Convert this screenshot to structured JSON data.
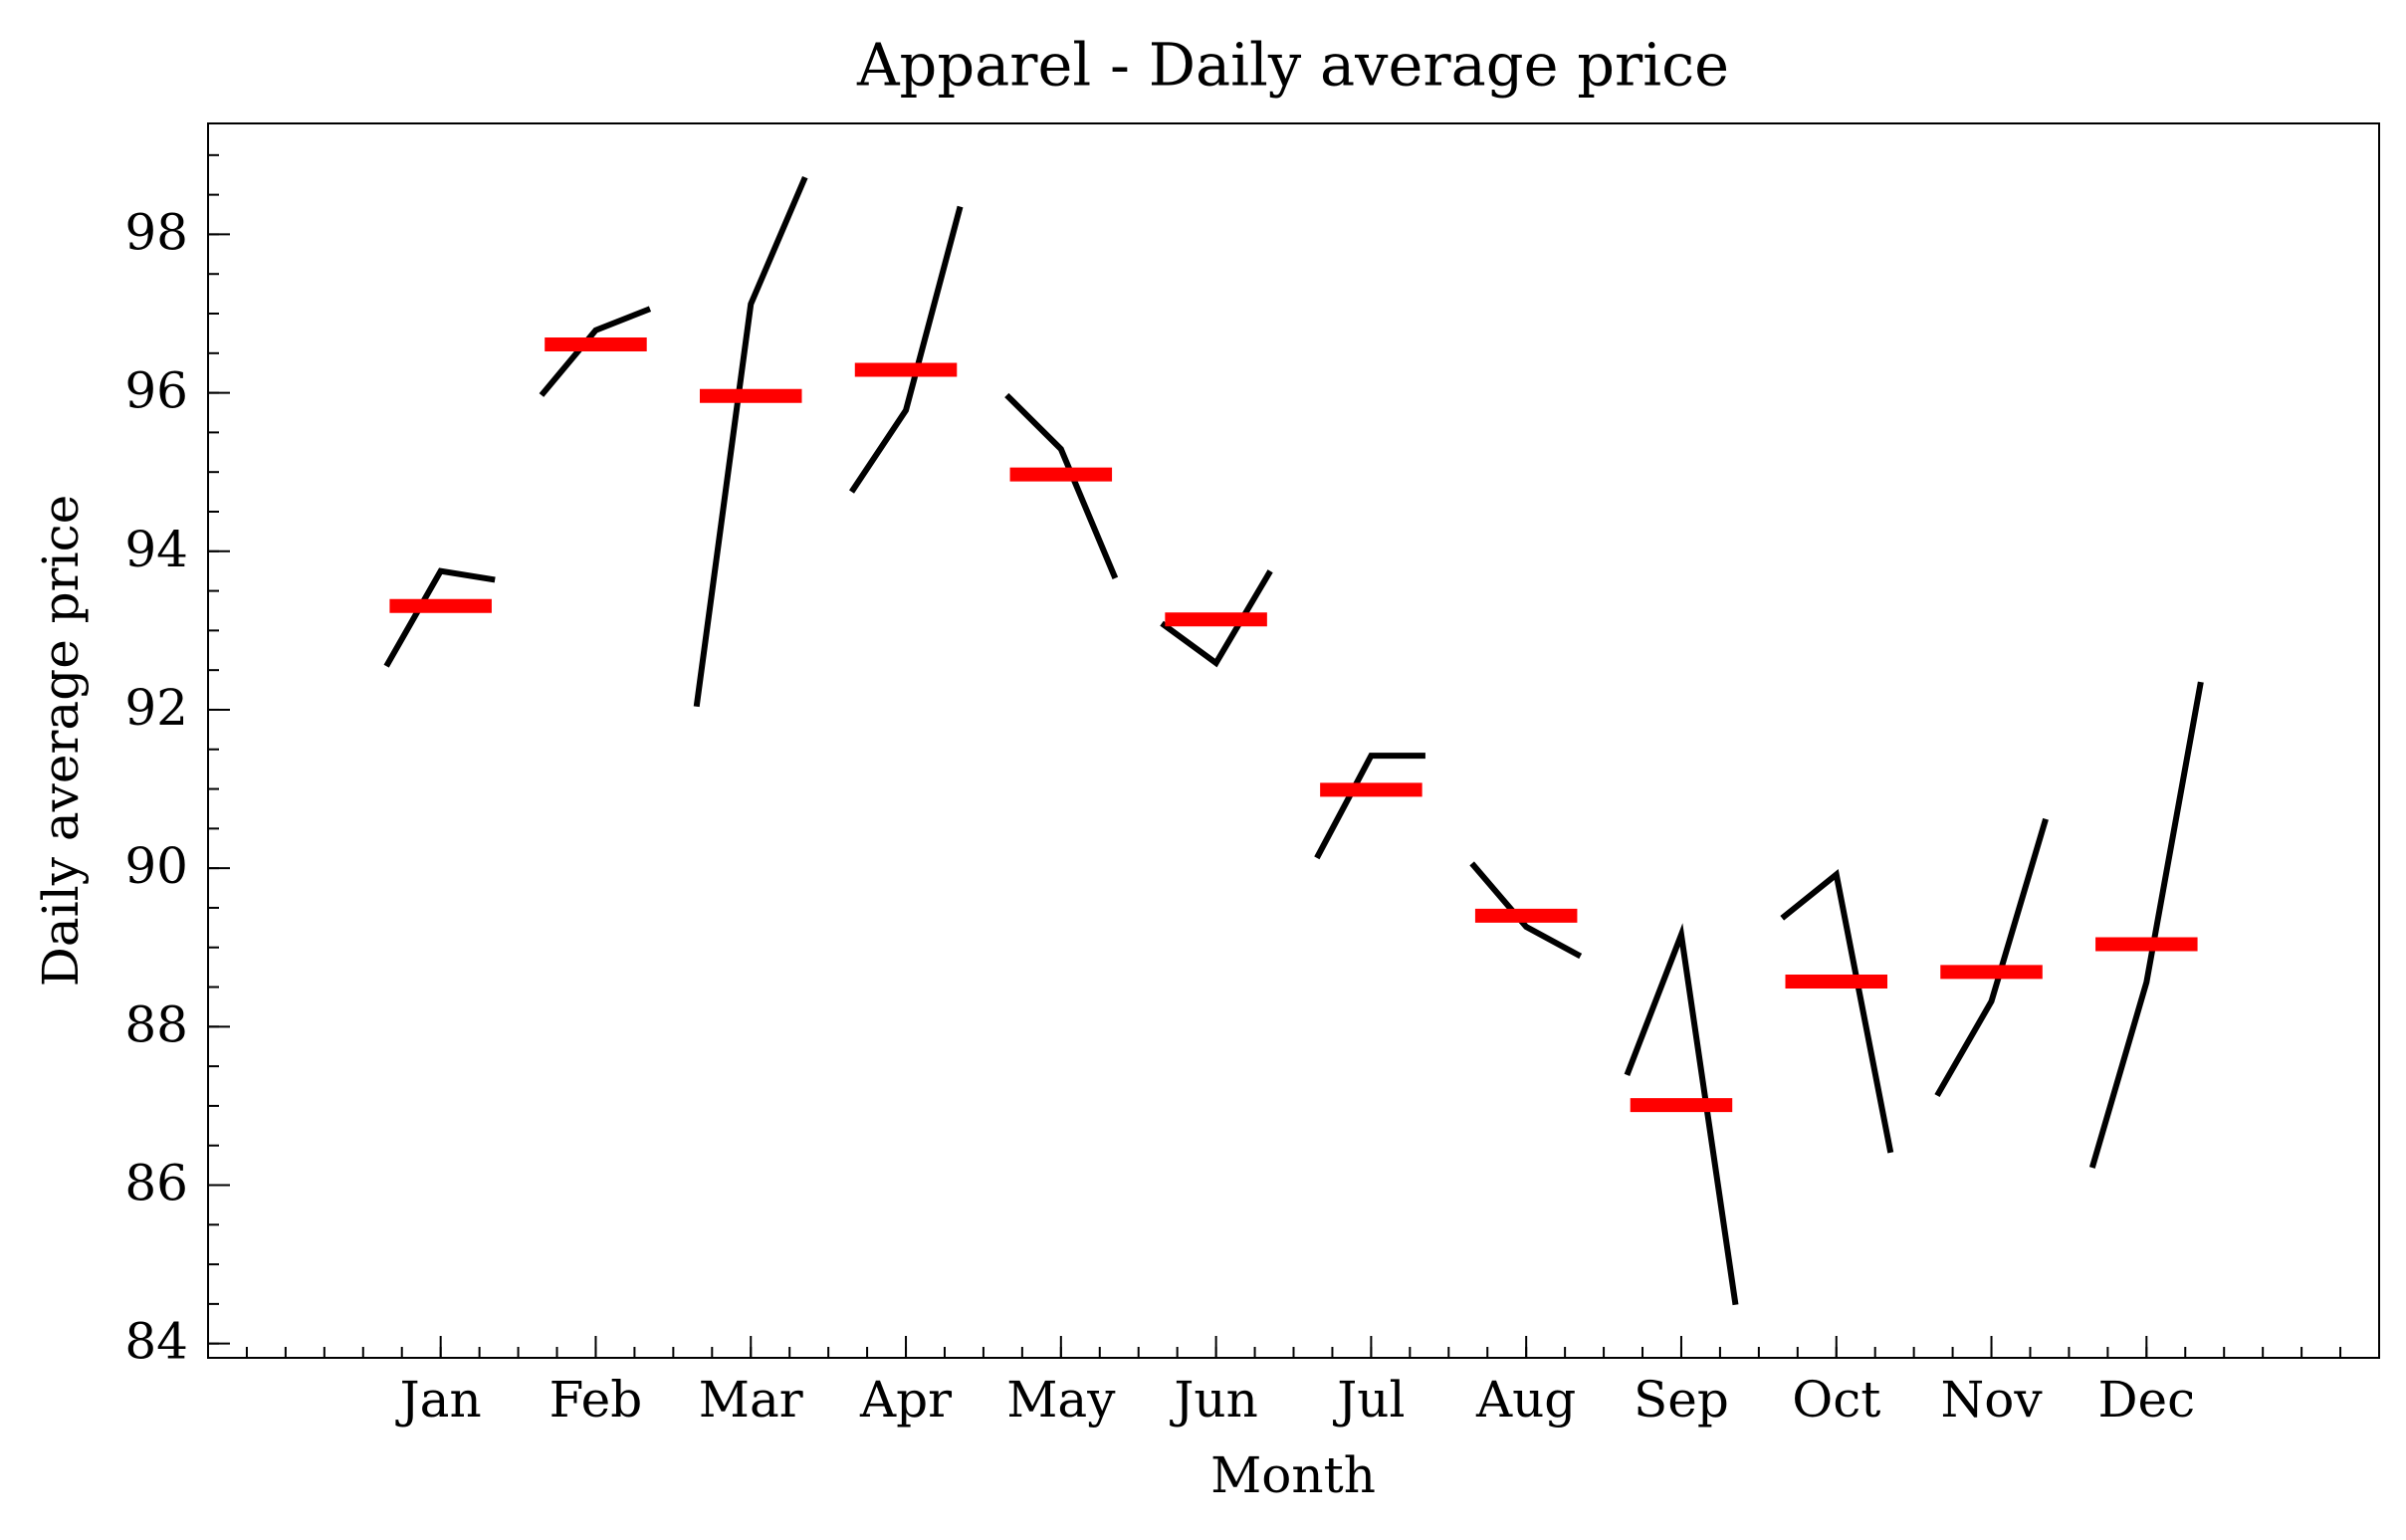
{
  "chart_data": {
    "type": "month_plot",
    "title": "Apparel - Daily average price",
    "xlabel": "Month",
    "ylabel": "Daily average price",
    "categories": [
      "Jan",
      "Feb",
      "Mar",
      "Apr",
      "May",
      "Jun",
      "Jul",
      "Aug",
      "Sep",
      "Oct",
      "Nov",
      "Dec"
    ],
    "values": [
      [
        92.55,
        93.75,
        93.64
      ],
      [
        95.97,
        96.79,
        97.06
      ],
      [
        92.04,
        97.12,
        98.72
      ],
      [
        94.75,
        95.78,
        98.35
      ],
      [
        95.97,
        95.29,
        93.66
      ],
      [
        93.09,
        92.59,
        93.75
      ],
      [
        90.13,
        91.42,
        91.42
      ],
      [
        90.06,
        89.26,
        88.89
      ],
      [
        87.39,
        89.16,
        84.49
      ],
      [
        89.37,
        89.92,
        86.41
      ],
      [
        87.13,
        88.32,
        90.62
      ],
      [
        86.22,
        88.56,
        92.35
      ]
    ],
    "means": [
      93.31,
      96.61,
      95.96,
      96.29,
      94.97,
      93.14,
      90.99,
      89.4,
      87.01,
      88.57,
      88.69,
      89.04
    ],
    "line_color": "#000000",
    "mean_color": "#ff0000",
    "xlim": [
      -0.5,
      13.5
    ],
    "ylim": [
      83.82,
      99.4
    ],
    "yticks": [
      84,
      86,
      88,
      90,
      92,
      94,
      96,
      98
    ],
    "x_minor_step": 0.25,
    "y_minor_step": 0.5,
    "grid": false
  }
}
